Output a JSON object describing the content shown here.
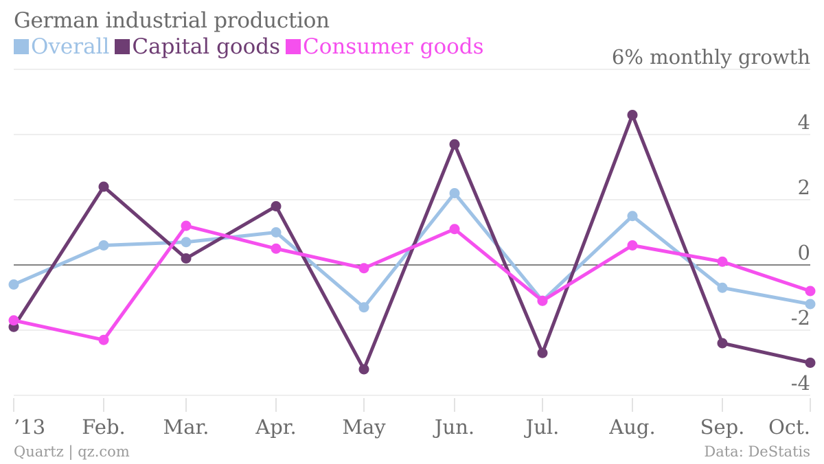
{
  "chart_data": {
    "type": "line",
    "title": "German industrial production",
    "ylabel": "monthly growth",
    "top_tick_label": "6% monthly growth",
    "categories": [
      "’13",
      "Feb.",
      "Mar.",
      "Apr.",
      "May",
      "Jun.",
      "Jul.",
      "Aug.",
      "Sep.",
      "Oct."
    ],
    "series": [
      {
        "name": "Overall",
        "color": "#9ec2e6",
        "values": [
          -0.6,
          0.6,
          0.7,
          1.0,
          -1.3,
          2.2,
          -1.1,
          1.5,
          -0.7,
          -1.2
        ]
      },
      {
        "name": "Capital goods",
        "color": "#6e3d73",
        "values": [
          -1.9,
          2.4,
          0.2,
          1.8,
          -3.2,
          3.7,
          -2.7,
          4.6,
          -2.4,
          -3.0
        ]
      },
      {
        "name": "Consumer goods",
        "color": "#f550ee",
        "values": [
          -1.7,
          -2.3,
          1.2,
          0.5,
          -0.1,
          1.1,
          -1.1,
          0.6,
          0.1,
          -0.8
        ]
      }
    ],
    "ylim": [
      -4,
      6
    ],
    "yticks": [
      "-4",
      "-2",
      "0",
      "2",
      "4"
    ],
    "grid": true,
    "legend_position": "top-left"
  },
  "footer": {
    "credit": "Quartz | qz.com",
    "source": "Data: DeStatis"
  }
}
